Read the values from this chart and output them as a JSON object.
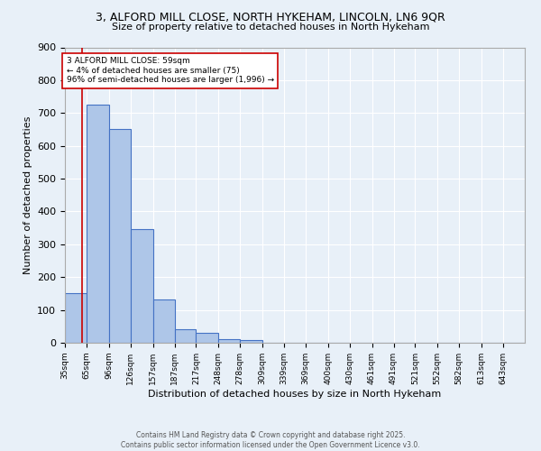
{
  "title_line1": "3, ALFORD MILL CLOSE, NORTH HYKEHAM, LINCOLN, LN6 9QR",
  "title_line2": "Size of property relative to detached houses in North Hykeham",
  "xlabel": "Distribution of detached houses by size in North Hykeham",
  "ylabel": "Number of detached properties",
  "bin_labels": [
    "35sqm",
    "65sqm",
    "96sqm",
    "126sqm",
    "157sqm",
    "187sqm",
    "217sqm",
    "248sqm",
    "278sqm",
    "309sqm",
    "339sqm",
    "369sqm",
    "400sqm",
    "430sqm",
    "461sqm",
    "491sqm",
    "521sqm",
    "552sqm",
    "582sqm",
    "613sqm",
    "643sqm"
  ],
  "bin_edges": [
    35,
    65,
    96,
    126,
    157,
    187,
    217,
    248,
    278,
    309,
    339,
    369,
    400,
    430,
    461,
    491,
    521,
    552,
    582,
    613,
    643
  ],
  "bar_heights": [
    150,
    725,
    650,
    345,
    133,
    42,
    30,
    12,
    7,
    0,
    0,
    0,
    0,
    0,
    0,
    0,
    0,
    0,
    0,
    0,
    0
  ],
  "bar_color": "#aec6e8",
  "bar_edge_color": "#4472c4",
  "background_color": "#e8f0f8",
  "grid_color": "#ffffff",
  "vline_x": 59,
  "vline_color": "#cc0000",
  "annotation_text": "3 ALFORD MILL CLOSE: 59sqm\n← 4% of detached houses are smaller (75)\n96% of semi-detached houses are larger (1,996) →",
  "annotation_box_color": "#ffffff",
  "annotation_box_edge": "#cc0000",
  "footer_line1": "Contains HM Land Registry data © Crown copyright and database right 2025.",
  "footer_line2": "Contains public sector information licensed under the Open Government Licence v3.0.",
  "ylim": [
    0,
    900
  ],
  "yticks": [
    0,
    100,
    200,
    300,
    400,
    500,
    600,
    700,
    800,
    900
  ]
}
